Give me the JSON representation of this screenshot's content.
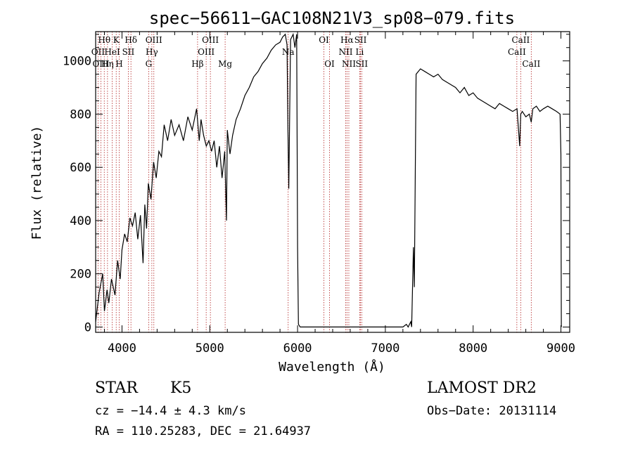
{
  "chart_data": {
    "type": "line",
    "title": "spec−56611−GAC108N21V3_sp08−079.fits",
    "xlabel": "Wavelength (Å)",
    "ylabel": "Flux (relative)",
    "xlim": [
      3700,
      9100
    ],
    "ylim": [
      -20,
      1110
    ],
    "x_ticks": [
      4000,
      5000,
      6000,
      7000,
      8000,
      9000
    ],
    "y_ticks": [
      0,
      200,
      400,
      600,
      800,
      1000
    ],
    "grid": false,
    "legend": "none",
    "series": [
      {
        "x": [
          3700,
          3740,
          3780,
          3800,
          3830,
          3850,
          3880,
          3920,
          3950,
          3980,
          4000,
          4030,
          4060,
          4090,
          4120,
          4150,
          4180,
          4210,
          4240,
          4260,
          4280,
          4300,
          4330,
          4360,
          4390,
          4420,
          4450,
          4480,
          4520,
          4560,
          4600,
          4650,
          4700,
          4750,
          4800,
          4850,
          4880,
          4900,
          4930,
          4960,
          4990,
          5020,
          5050,
          5080,
          5110,
          5140,
          5170,
          5190,
          5200,
          5230,
          5260,
          5300,
          5350,
          5400,
          5450,
          5500,
          5550,
          5600,
          5650,
          5700,
          5750,
          5800,
          5830,
          5860,
          5880,
          5890,
          5900,
          5920,
          5950,
          5970,
          5990,
          6000,
          6010,
          6030,
          6100,
          6500,
          7000,
          7200,
          7240,
          7260,
          7290,
          7300,
          7320,
          7330,
          7350,
          7400,
          7450,
          7500,
          7550,
          7600,
          7650,
          7700,
          7750,
          7800,
          7850,
          7900,
          7950,
          8000,
          8050,
          8100,
          8150,
          8200,
          8250,
          8300,
          8350,
          8400,
          8450,
          8500,
          8530,
          8542,
          8560,
          8600,
          8640,
          8662,
          8680,
          8720,
          8760,
          8800,
          8850,
          8900,
          8950,
          8990,
          9000,
          9005
        ],
        "y": [
          20,
          130,
          200,
          60,
          140,
          90,
          180,
          120,
          250,
          180,
          290,
          350,
          320,
          410,
          380,
          430,
          330,
          420,
          240,
          460,
          370,
          540,
          480,
          620,
          560,
          660,
          640,
          760,
          700,
          780,
          720,
          760,
          700,
          790,
          740,
          820,
          700,
          780,
          720,
          680,
          700,
          660,
          700,
          600,
          680,
          560,
          660,
          400,
          740,
          650,
          720,
          780,
          820,
          870,
          900,
          940,
          960,
          990,
          1010,
          1040,
          1060,
          1070,
          1090,
          1100,
          1060,
          760,
          520,
          1080,
          1100,
          1050,
          1100,
          300,
          10,
          0,
          0,
          0,
          0,
          0,
          10,
          0,
          20,
          0,
          300,
          150,
          950,
          970,
          960,
          950,
          940,
          950,
          930,
          920,
          910,
          900,
          880,
          900,
          870,
          880,
          860,
          850,
          840,
          830,
          820,
          840,
          830,
          820,
          810,
          820,
          680,
          800,
          810,
          790,
          800,
          770,
          820,
          830,
          810,
          820,
          830,
          820,
          810,
          800,
          650,
          0
        ]
      }
    ],
    "lines": [
      {
        "label": "Hθ",
        "x": 3798,
        "row": 1
      },
      {
        "label": "OII",
        "x": 3727,
        "row": 2
      },
      {
        "label": "Hη",
        "x": 3835,
        "row": 3
      },
      {
        "label": "OIII",
        "x": 3760,
        "row": 3
      },
      {
        "label": "K",
        "x": 3934,
        "row": 1
      },
      {
        "label": "HeI",
        "x": 3889,
        "row": 2
      },
      {
        "label": "H",
        "x": 3968,
        "row": 3
      },
      {
        "label": "Hδ",
        "x": 4102,
        "row": 1
      },
      {
        "label": "SII",
        "x": 4072,
        "row": 2
      },
      {
        "label": "OIII",
        "x": 4363,
        "row": 1
      },
      {
        "label": "Hγ",
        "x": 4340,
        "row": 2
      },
      {
        "label": "G",
        "x": 4304,
        "row": 3
      },
      {
        "label": "OIII",
        "x": 5007,
        "row": 1
      },
      {
        "label": "OIII",
        "x": 4959,
        "row": 2
      },
      {
        "label": "Hβ",
        "x": 4861,
        "row": 3
      },
      {
        "label": "Mg",
        "x": 5175,
        "row": 3
      },
      {
        "label": "Na",
        "x": 5893,
        "row": 2
      },
      {
        "label": "OI",
        "x": 6300,
        "row": 1
      },
      {
        "label": "OI",
        "x": 6364,
        "row": 3
      },
      {
        "label": "Hα",
        "x": 6563,
        "row": 1
      },
      {
        "label": "NII",
        "x": 6548,
        "row": 2
      },
      {
        "label": "NII",
        "x": 6584,
        "row": 3
      },
      {
        "label": "SII",
        "x": 6717,
        "row": 1
      },
      {
        "label": "Li",
        "x": 6708,
        "row": 2
      },
      {
        "label": "SII",
        "x": 6731,
        "row": 3
      },
      {
        "label": "CaII",
        "x": 8542,
        "row": 1
      },
      {
        "label": "CaII",
        "x": 8498,
        "row": 2
      },
      {
        "label": "CaII",
        "x": 8662,
        "row": 3
      }
    ]
  },
  "info": {
    "class": "STAR",
    "subclass": "K5",
    "cz": "cz = −14.4 ± 4.3 km/s",
    "radec": "RA = 110.25283, DEC =  21.64937",
    "survey": "LAMOST DR2",
    "obsdate": "Obs−Date: 20131114"
  }
}
